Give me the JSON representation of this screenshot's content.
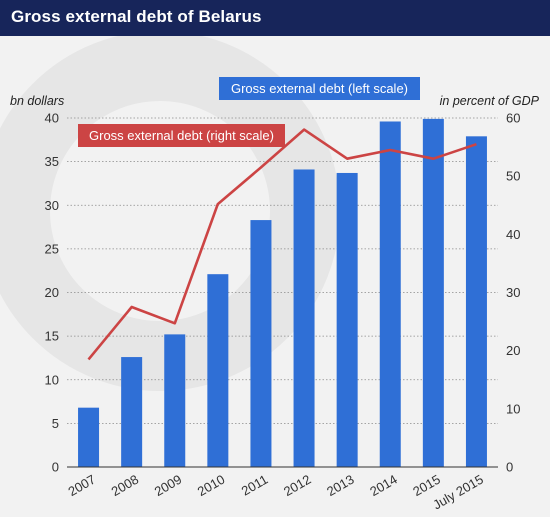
{
  "header": {
    "title": "Gross external debt of Belarus"
  },
  "chart_data": {
    "type": "bar",
    "title": "Gross external debt of Belarus",
    "categories": [
      "2007",
      "2008",
      "2009",
      "2010",
      "2011",
      "2012",
      "2013",
      "2014",
      "2015",
      "July 2015"
    ],
    "series": [
      {
        "name": "Gross external debt (left scale)",
        "type": "bar",
        "axis": "left",
        "color": "#2f6fd6",
        "values": [
          6.8,
          12.6,
          15.2,
          22.1,
          28.3,
          34.1,
          33.7,
          39.6,
          39.9,
          37.9
        ]
      },
      {
        "name": "Gross external debt (right scale)",
        "type": "line",
        "axis": "right",
        "color": "#cc4444",
        "values": [
          18.5,
          27.5,
          24.7,
          45.2,
          51.5,
          58.0,
          53.0,
          54.5,
          53.0,
          55.5
        ]
      }
    ],
    "ylabel_left": "bn dollars",
    "ylabel_right": "in percent of GDP",
    "ylim_left": [
      0,
      40
    ],
    "ylim_right": [
      0,
      60
    ],
    "yticks_left": [
      0,
      5,
      10,
      15,
      20,
      25,
      30,
      35,
      40
    ],
    "yticks_right": [
      0,
      10,
      20,
      30,
      40,
      50,
      60
    ],
    "grid": true,
    "background_color": "#f2f2f2",
    "header_color": "#17255a"
  }
}
